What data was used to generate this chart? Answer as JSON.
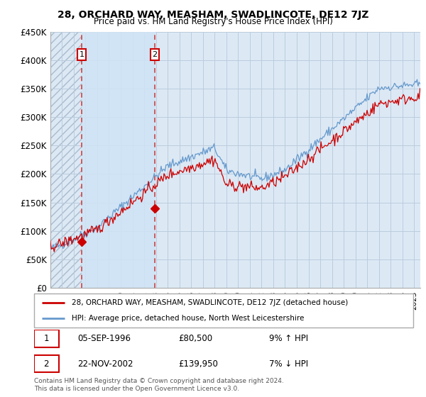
{
  "title": "28, ORCHARD WAY, MEASHAM, SWADLINCOTE, DE12 7JZ",
  "subtitle": "Price paid vs. HM Land Registry's House Price Index (HPI)",
  "ylim": [
    0,
    450000
  ],
  "yticks": [
    0,
    50000,
    100000,
    150000,
    200000,
    250000,
    300000,
    350000,
    400000,
    450000
  ],
  "ytick_labels": [
    "£0",
    "£50K",
    "£100K",
    "£150K",
    "£200K",
    "£250K",
    "£300K",
    "£350K",
    "£400K",
    "£450K"
  ],
  "background_color": "#ffffff",
  "plot_bg_color": "#dce9f5",
  "grid_color": "#bbccdd",
  "hatch_bg_color": "#c8d8e8",
  "sale1_price": 80500,
  "sale1_x": 1996.674,
  "sale2_price": 139950,
  "sale2_x": 2002.894,
  "legend_entry1": "28, ORCHARD WAY, MEASHAM, SWADLINCOTE, DE12 7JZ (detached house)",
  "legend_entry2": "HPI: Average price, detached house, North West Leicestershire",
  "table_row1": [
    "1",
    "05-SEP-1996",
    "£80,500",
    "9% ↑ HPI"
  ],
  "table_row2": [
    "2",
    "22-NOV-2002",
    "£139,950",
    "7% ↓ HPI"
  ],
  "footer": "Contains HM Land Registry data © Crown copyright and database right 2024.\nThis data is licensed under the Open Government Licence v3.0.",
  "red_line_color": "#cc0000",
  "blue_line_color": "#6699cc",
  "sale_marker_color": "#cc0000",
  "dashed_line_color": "#cc4444",
  "shade_color": "#d0e4f5",
  "xlim_start": 1994,
  "xlim_end": 2025.5
}
